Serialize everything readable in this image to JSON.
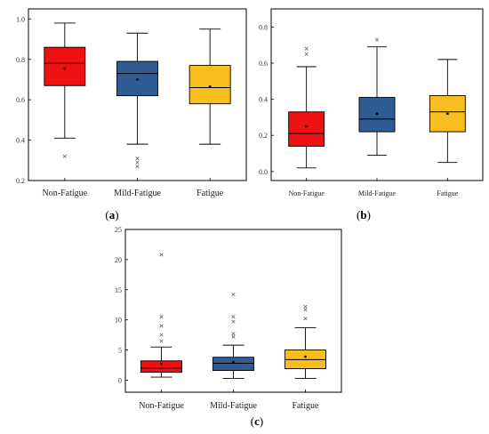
{
  "panels": {
    "a": {
      "label_open": "(",
      "label_letter": "a",
      "label_close": ")"
    },
    "b": {
      "label_open": "(",
      "label_letter": "b",
      "label_close": ")"
    },
    "c": {
      "label_open": "(",
      "label_letter": "c",
      "label_close": ")"
    }
  },
  "chart_data": [
    {
      "type": "box",
      "panel": "a",
      "categories": [
        "Non-Fatigue",
        "Mild-Fatigue",
        "Fatigue"
      ],
      "colors": [
        "#ee1111",
        "#2f5d93",
        "#f8bd1e"
      ],
      "ylim": [
        0.2,
        1.05
      ],
      "yticks": [
        "0.2",
        "0.4",
        "0.6",
        "0.8",
        "1.0"
      ],
      "boxes": [
        {
          "whisker_low": 0.41,
          "q1": 0.67,
          "median": 0.78,
          "mean": 0.755,
          "q3": 0.86,
          "whisker_high": 0.98,
          "outliers": [
            0.32
          ]
        },
        {
          "whisker_low": 0.38,
          "q1": 0.62,
          "median": 0.73,
          "mean": 0.7,
          "q3": 0.79,
          "whisker_high": 0.93,
          "outliers": [
            0.27,
            0.29,
            0.31
          ]
        },
        {
          "whisker_low": 0.38,
          "q1": 0.58,
          "median": 0.66,
          "mean": 0.665,
          "q3": 0.77,
          "whisker_high": 0.95,
          "outliers": []
        }
      ]
    },
    {
      "type": "box",
      "panel": "b",
      "categories": [
        "Non-Fatigue",
        "Mild-Fatigue",
        "Fatigue"
      ],
      "colors": [
        "#ee1111",
        "#2f5d93",
        "#f8bd1e"
      ],
      "ylim": [
        -0.05,
        0.9
      ],
      "yticks": [
        "0.0",
        "0.2",
        "0.4",
        "0.6",
        "0.8"
      ],
      "boxes": [
        {
          "whisker_low": 0.02,
          "q1": 0.14,
          "median": 0.21,
          "mean": 0.25,
          "q3": 0.33,
          "whisker_high": 0.58,
          "outliers": [
            0.65,
            0.68
          ]
        },
        {
          "whisker_low": 0.09,
          "q1": 0.22,
          "median": 0.29,
          "mean": 0.32,
          "q3": 0.41,
          "whisker_high": 0.69,
          "outliers": [
            0.73
          ]
        },
        {
          "whisker_low": 0.05,
          "q1": 0.22,
          "median": 0.33,
          "mean": 0.32,
          "q3": 0.42,
          "whisker_high": 0.62,
          "outliers": []
        }
      ]
    },
    {
      "type": "box",
      "panel": "c",
      "categories": [
        "Non-Fatigue",
        "Mild-Fatigue",
        "Fatigue"
      ],
      "colors": [
        "#ee1111",
        "#2f5d93",
        "#f8bd1e"
      ],
      "ylim": [
        -2,
        25
      ],
      "yticks": [
        "0",
        "5",
        "10",
        "15",
        "20",
        "25"
      ],
      "boxes": [
        {
          "whisker_low": 0.5,
          "q1": 1.3,
          "median": 2.0,
          "mean": 2.7,
          "q3": 3.2,
          "whisker_high": 5.5,
          "outliers": [
            6.5,
            7.5,
            9.0,
            10.5,
            20.8
          ]
        },
        {
          "whisker_low": 0.3,
          "q1": 1.6,
          "median": 2.8,
          "mean": 3.0,
          "q3": 3.8,
          "whisker_high": 5.8,
          "outliers": [
            7.2,
            7.7,
            9.7,
            10.5,
            14.2
          ]
        },
        {
          "whisker_low": 0.3,
          "q1": 1.9,
          "median": 3.4,
          "mean": 3.9,
          "q3": 5.0,
          "whisker_high": 8.7,
          "outliers": [
            10.2,
            11.7,
            12.2
          ]
        }
      ]
    }
  ]
}
